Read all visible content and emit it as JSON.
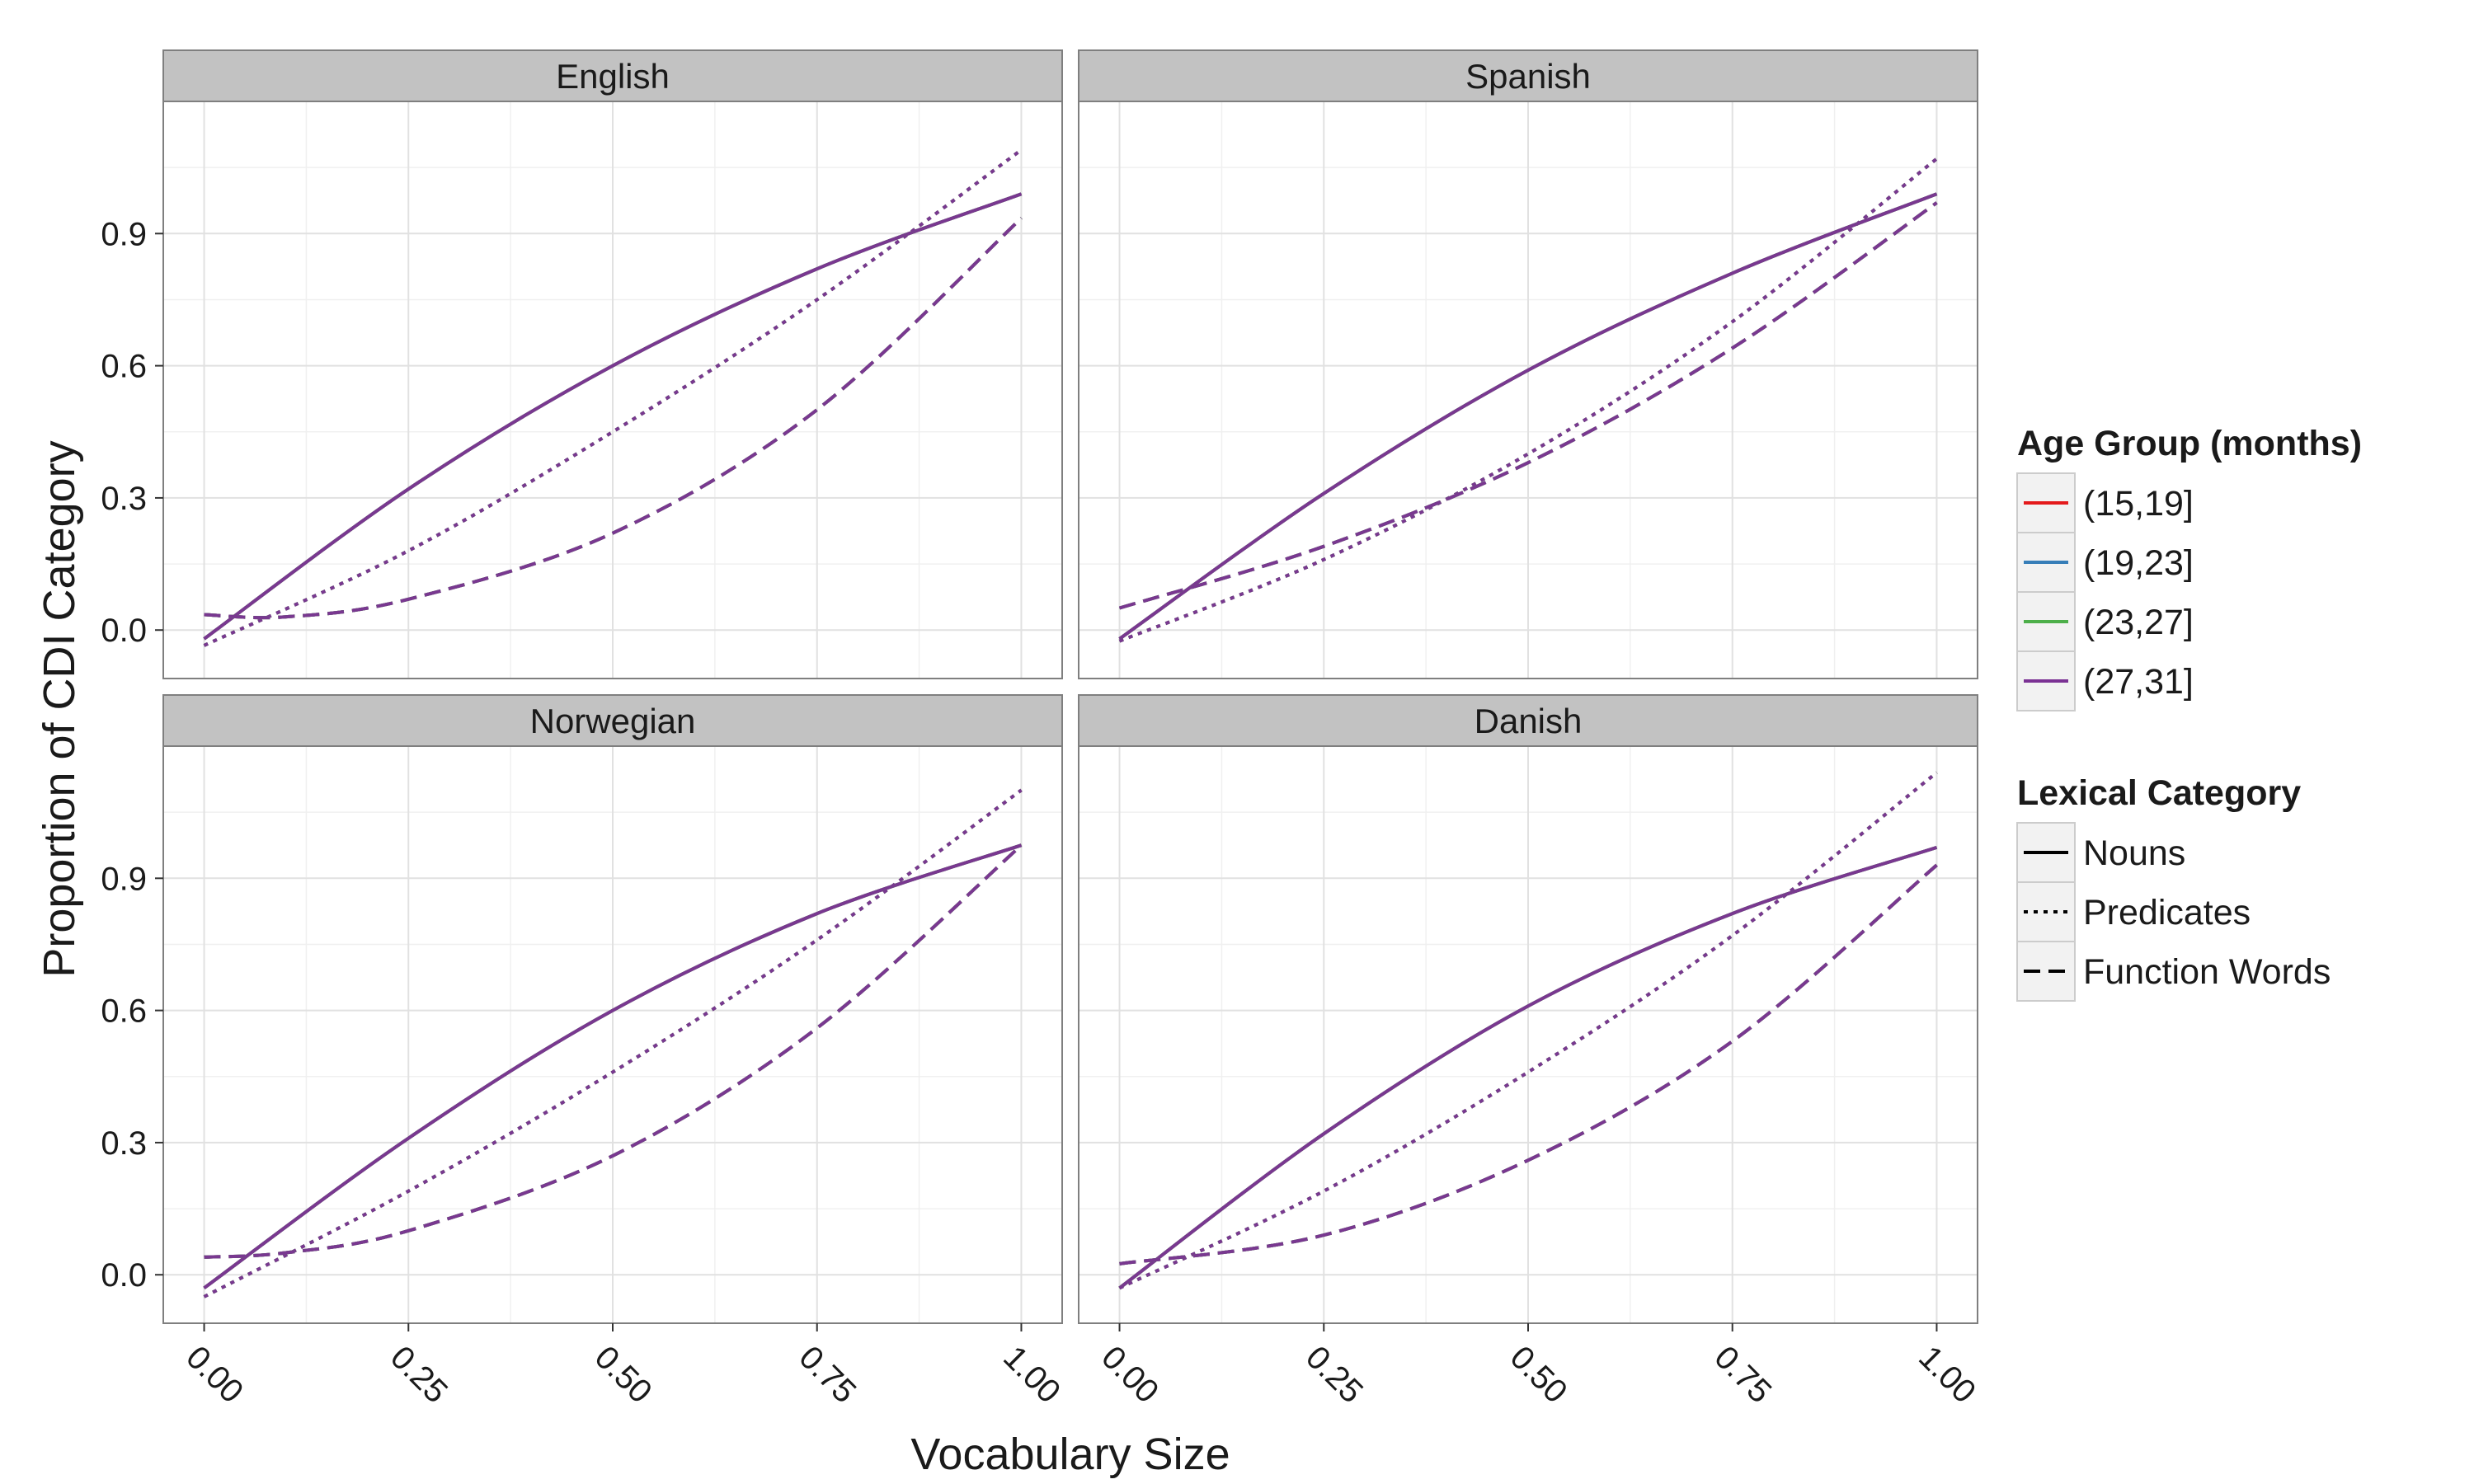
{
  "chart_data": {
    "type": "line",
    "xlabel": "Vocabulary Size",
    "ylabel": "Proportion of CDI Category",
    "xlim": [
      -0.05,
      1.05
    ],
    "x_ticks": [
      0,
      0.25,
      0.5,
      0.75,
      1
    ],
    "x_tick_labels": [
      "0.00",
      "0.25",
      "0.50",
      "0.75",
      "1.00"
    ],
    "y_ticks": [
      0,
      0.3,
      0.6,
      0.9
    ],
    "y_tick_labels": [
      "0.0",
      "0.3",
      "0.6",
      "0.9"
    ],
    "grid": true,
    "legend_placement": "right",
    "legends": [
      {
        "title": "Age Group (months)",
        "entries": [
          {
            "label": "(15,19]",
            "color": "#e41a1c",
            "dash": "solid"
          },
          {
            "label": "(19,23]",
            "color": "#377eb8",
            "dash": "solid"
          },
          {
            "label": "(23,27]",
            "color": "#4daf4a",
            "dash": "solid"
          },
          {
            "label": "(27,31]",
            "color": "#7b3294",
            "dash": "solid"
          }
        ]
      },
      {
        "title": "Lexical Category",
        "entries": [
          {
            "label": "Nouns",
            "color": "#000000",
            "dash": "solid"
          },
          {
            "label": "Predicates",
            "color": "#000000",
            "dash": "dotted"
          },
          {
            "label": "Function Words",
            "color": "#000000",
            "dash": "dashed"
          }
        ]
      }
    ],
    "panels": [
      {
        "title": "English",
        "ylim": [
          -0.11,
          1.2
        ],
        "series": [
          {
            "category": "Nouns",
            "x": [
              0,
              0.25,
              0.5,
              0.75,
              1
            ],
            "y": [
              -0.02,
              0.32,
              0.6,
              0.82,
              0.99
            ]
          },
          {
            "category": "Predicates",
            "x": [
              0,
              0.25,
              0.5,
              0.75,
              1
            ],
            "y": [
              -0.035,
              0.18,
              0.45,
              0.75,
              1.09
            ]
          },
          {
            "category": "Function Words",
            "x": [
              0,
              0.1,
              0.25,
              0.5,
              0.75,
              1
            ],
            "y": [
              0.035,
              0.03,
              0.07,
              0.22,
              0.5,
              0.935
            ]
          }
        ]
      },
      {
        "title": "Spanish",
        "ylim": [
          -0.11,
          1.2
        ],
        "series": [
          {
            "category": "Nouns",
            "x": [
              0,
              0.25,
              0.5,
              0.75,
              1
            ],
            "y": [
              -0.02,
              0.31,
              0.59,
              0.81,
              0.99
            ]
          },
          {
            "category": "Predicates",
            "x": [
              0,
              0.25,
              0.5,
              0.75,
              1
            ],
            "y": [
              -0.025,
              0.16,
              0.4,
              0.7,
              1.07
            ]
          },
          {
            "category": "Function Words",
            "x": [
              0,
              0.25,
              0.5,
              0.75,
              1
            ],
            "y": [
              0.05,
              0.19,
              0.38,
              0.64,
              0.97
            ]
          }
        ]
      },
      {
        "title": "Norwegian",
        "ylim": [
          -0.11,
          1.2
        ],
        "series": [
          {
            "category": "Nouns",
            "x": [
              0,
              0.25,
              0.5,
              0.75,
              1
            ],
            "y": [
              -0.03,
              0.31,
              0.6,
              0.82,
              0.975
            ]
          },
          {
            "category": "Predicates",
            "x": [
              0,
              0.25,
              0.5,
              0.75,
              1
            ],
            "y": [
              -0.05,
              0.19,
              0.46,
              0.76,
              1.1
            ]
          },
          {
            "category": "Function Words",
            "x": [
              0,
              0.1,
              0.25,
              0.5,
              0.75,
              1
            ],
            "y": [
              0.04,
              0.05,
              0.1,
              0.27,
              0.56,
              0.975
            ]
          }
        ]
      },
      {
        "title": "Danish",
        "ylim": [
          -0.11,
          1.2
        ],
        "series": [
          {
            "category": "Nouns",
            "x": [
              0,
              0.25,
              0.5,
              0.75,
              1
            ],
            "y": [
              -0.03,
              0.32,
              0.61,
              0.82,
              0.97
            ]
          },
          {
            "category": "Predicates",
            "x": [
              0,
              0.25,
              0.5,
              0.75,
              1
            ],
            "y": [
              -0.03,
              0.19,
              0.46,
              0.77,
              1.14
            ]
          },
          {
            "category": "Function Words",
            "x": [
              0,
              0.25,
              0.5,
              0.75,
              1
            ],
            "y": [
              0.025,
              0.09,
              0.26,
              0.53,
              0.93
            ]
          }
        ]
      }
    ]
  }
}
